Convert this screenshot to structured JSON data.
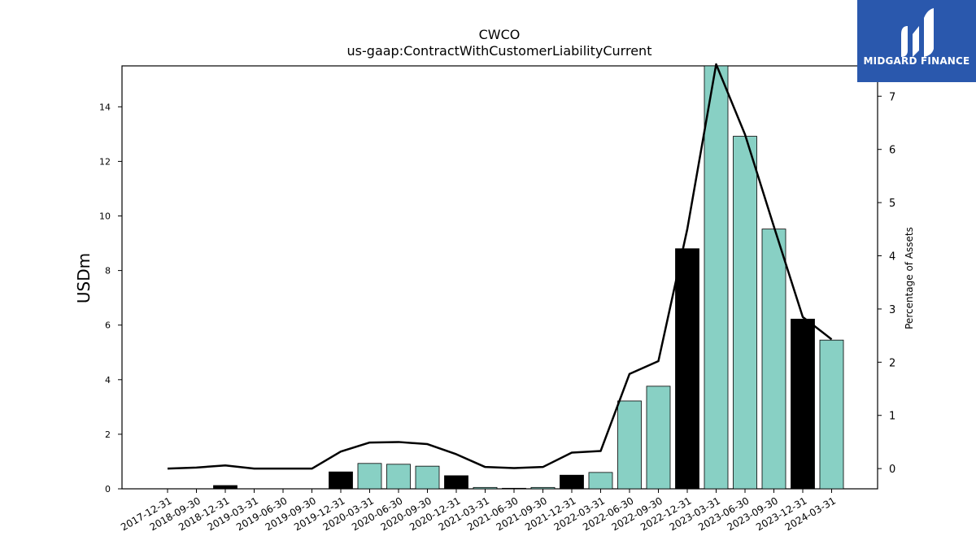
{
  "chart_data": {
    "type": "bar",
    "title": "CWCO",
    "subtitle": "us-gaap:ContractWithCustomerLiabilityCurrent",
    "ylabel": "USDm",
    "y2label": "Percentage of Assets",
    "categories": [
      "2017-12-31",
      "2018-09-30",
      "2018-12-31",
      "2019-03-31",
      "2019-06-30",
      "2019-09-30",
      "2019-12-31",
      "2020-03-31",
      "2020-06-30",
      "2020-09-30",
      "2020-12-31",
      "2021-03-31",
      "2021-06-30",
      "2021-09-30",
      "2021-12-31",
      "2022-03-31",
      "2022-06-30",
      "2022-09-30",
      "2022-12-31",
      "2023-03-31",
      "2023-06-30",
      "2023-09-30",
      "2023-12-31",
      "2024-03-31"
    ],
    "ylim": [
      0,
      15.5
    ],
    "y2lim": [
      -0.38,
      7.57
    ],
    "yticks": [
      0,
      2,
      4,
      6,
      8,
      10,
      12,
      14
    ],
    "y2ticks": [
      0,
      1,
      2,
      3,
      4,
      5,
      6,
      7
    ],
    "series": [
      {
        "type": "bar",
        "values": [
          0,
          0,
          0.12,
          0,
          0,
          0,
          0.62,
          0.93,
          0.9,
          0.83,
          0.48,
          0.05,
          0.02,
          0.05,
          0.5,
          0.6,
          3.22,
          3.76,
          8.8,
          15.6,
          12.92,
          9.52,
          6.22,
          5.45
        ],
        "colors": [
          "#000000",
          "#000000",
          "#000000",
          "#88d0c4",
          "#88d0c4",
          "#88d0c4",
          "#000000",
          "#88d0c4",
          "#88d0c4",
          "#88d0c4",
          "#000000",
          "#88d0c4",
          "#88d0c4",
          "#88d0c4",
          "#000000",
          "#88d0c4",
          "#88d0c4",
          "#88d0c4",
          "#000000",
          "#88d0c4",
          "#88d0c4",
          "#88d0c4",
          "#000000",
          "#88d0c4"
        ]
      },
      {
        "type": "line",
        "axis": "right",
        "values": [
          0.0,
          0.02,
          0.06,
          0.0,
          0.0,
          0.0,
          0.32,
          0.49,
          0.5,
          0.46,
          0.27,
          0.03,
          0.01,
          0.03,
          0.3,
          0.33,
          1.78,
          2.02,
          4.5,
          7.6,
          6.28,
          4.55,
          2.85,
          2.43
        ],
        "color": "#000000"
      }
    ],
    "legend": "none",
    "grid": false
  },
  "logo": {
    "text": "MIDGARD FINANCE",
    "background": "#2a58ad"
  }
}
